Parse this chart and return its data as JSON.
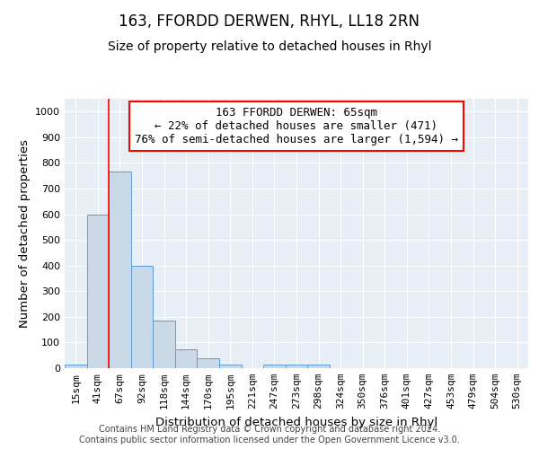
{
  "title": "163, FFORDD DERWEN, RHYL, LL18 2RN",
  "subtitle": "Size of property relative to detached houses in Rhyl",
  "xlabel": "Distribution of detached houses by size in Rhyl",
  "ylabel": "Number of detached properties",
  "bar_labels": [
    "15sqm",
    "41sqm",
    "67sqm",
    "92sqm",
    "118sqm",
    "144sqm",
    "170sqm",
    "195sqm",
    "221sqm",
    "247sqm",
    "273sqm",
    "298sqm",
    "324sqm",
    "350sqm",
    "376sqm",
    "401sqm",
    "427sqm",
    "453sqm",
    "479sqm",
    "504sqm",
    "530sqm"
  ],
  "bar_values": [
    15,
    600,
    765,
    400,
    185,
    75,
    40,
    15,
    0,
    15,
    15,
    15,
    0,
    0,
    0,
    0,
    0,
    0,
    0,
    0,
    0
  ],
  "bar_color": "#c9d9e8",
  "bar_edge_color": "#5b9bd5",
  "vline_x": 1.5,
  "vline_color": "#ff0000",
  "annotation_line1": "163 FFORDD DERWEN: 65sqm",
  "annotation_line2": "← 22% of detached houses are smaller (471)",
  "annotation_line3": "76% of semi-detached houses are larger (1,594) →",
  "annotation_box_color": "#ffffff",
  "annotation_box_edge_color": "#ff0000",
  "ylim": [
    0,
    1050
  ],
  "yticks": [
    0,
    100,
    200,
    300,
    400,
    500,
    600,
    700,
    800,
    900,
    1000
  ],
  "background_color": "#e8eef5",
  "grid_color": "#ffffff",
  "footer_line1": "Contains HM Land Registry data © Crown copyright and database right 2024.",
  "footer_line2": "Contains public sector information licensed under the Open Government Licence v3.0.",
  "title_fontsize": 12,
  "subtitle_fontsize": 10,
  "axis_label_fontsize": 9.5,
  "tick_fontsize": 8,
  "annotation_fontsize": 9,
  "footer_fontsize": 7
}
